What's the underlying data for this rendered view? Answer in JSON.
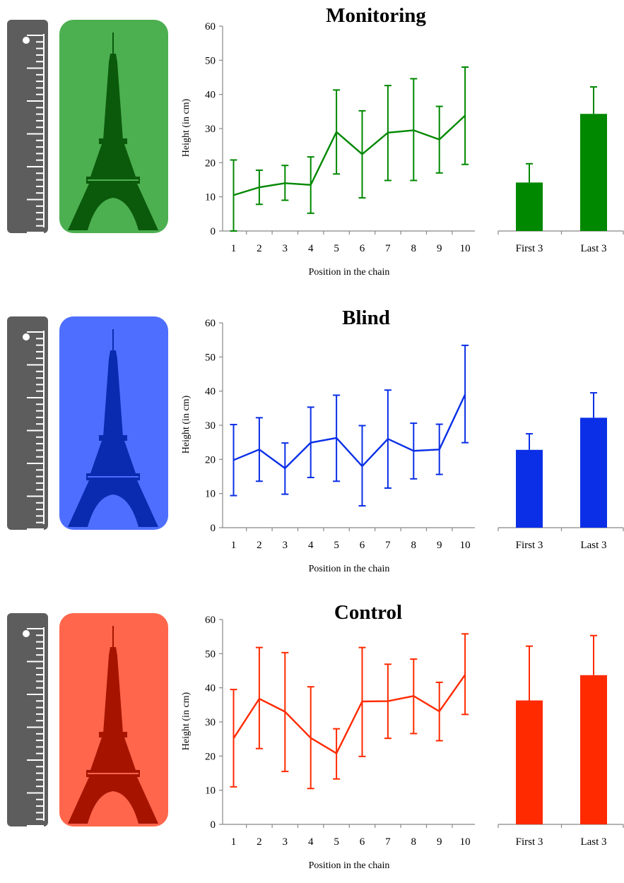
{
  "panels": [
    {
      "key": "monitoring",
      "tower_bg": "#4CAF50",
      "tower_fg": "#0B5A0B",
      "series_color": "#008800",
      "chart_data": {
        "type": "line",
        "title": "Monitoring",
        "xlabel": "Position in the chain",
        "ylabel": "Height (in cm)",
        "ylim": [
          0,
          60
        ],
        "yticks": [
          0,
          10,
          20,
          30,
          40,
          50,
          60
        ],
        "x": [
          1,
          2,
          3,
          4,
          5,
          6,
          7,
          8,
          9,
          10
        ],
        "series": [
          {
            "values": [
              10.5,
              12.8,
              14,
              13.5,
              29,
              22.5,
              28.8,
              29.5,
              26.8,
              33.8
            ],
            "err_low": [
              0,
              7.8,
              9,
              5.2,
              16.7,
              9.7,
              14.8,
              14.8,
              17,
              19.5
            ],
            "err_high": [
              20.8,
              17.8,
              19.2,
              21.7,
              41.3,
              35.2,
              42.6,
              44.6,
              36.5,
              48
            ]
          }
        ],
        "bars": {
          "type": "bar",
          "categories": [
            "First 3",
            "Last 3"
          ],
          "values": [
            14.2,
            34.3
          ],
          "err_high": [
            19.7,
            42.2
          ]
        }
      }
    },
    {
      "key": "blind",
      "tower_bg": "#4E6EFF",
      "tower_fg": "#0A2BB0",
      "series_color": "#0A2FE6",
      "chart_data": {
        "type": "line",
        "title": "Blind",
        "xlabel": "Position in the chain",
        "ylabel": "Height (in cm)",
        "ylim": [
          0,
          60
        ],
        "yticks": [
          0,
          10,
          20,
          30,
          40,
          50,
          60
        ],
        "x": [
          1,
          2,
          3,
          4,
          5,
          6,
          7,
          8,
          9,
          10
        ],
        "series": [
          {
            "values": [
              19.8,
              22.9,
              17.4,
              24.9,
              26.3,
              18,
              26,
              22.5,
              22.9,
              39
            ],
            "err_low": [
              9.4,
              13.6,
              9.8,
              14.7,
              13.6,
              6.4,
              11.6,
              14.3,
              15.6,
              24.9
            ],
            "err_high": [
              30.2,
              32.2,
              24.8,
              35.3,
              38.8,
              29.9,
              40.3,
              30.6,
              30.3,
              53.4
            ]
          }
        ],
        "bars": {
          "type": "bar",
          "categories": [
            "First 3",
            "Last 3"
          ],
          "values": [
            22.8,
            32.2
          ],
          "err_high": [
            27.5,
            39.5
          ]
        }
      }
    },
    {
      "key": "control",
      "tower_bg": "#FF664C",
      "tower_fg": "#A61400",
      "series_color": "#FF2A00",
      "chart_data": {
        "type": "line",
        "title": "Control",
        "xlabel": "Position in the chain",
        "ylabel": "Height (in cm)",
        "ylim": [
          0,
          60
        ],
        "yticks": [
          0,
          10,
          20,
          30,
          40,
          50,
          60
        ],
        "x": [
          1,
          2,
          3,
          4,
          5,
          6,
          7,
          8,
          9,
          10
        ],
        "series": [
          {
            "values": [
              25.2,
              36.8,
              33,
              25.3,
              20.8,
              36,
              36.1,
              37.6,
              33.1,
              43.8
            ],
            "err_low": [
              11,
              22.2,
              15.5,
              10.5,
              13.3,
              19.9,
              25.2,
              26.6,
              24.5,
              32.2
            ],
            "err_high": [
              39.5,
              51.8,
              50.3,
              40.3,
              28,
              51.8,
              46.9,
              48.4,
              41.6,
              55.8
            ]
          }
        ],
        "bars": {
          "type": "bar",
          "categories": [
            "First 3",
            "Last 3"
          ],
          "values": [
            36.3,
            43.7
          ],
          "err_high": [
            52.2,
            55.3
          ]
        }
      }
    }
  ]
}
